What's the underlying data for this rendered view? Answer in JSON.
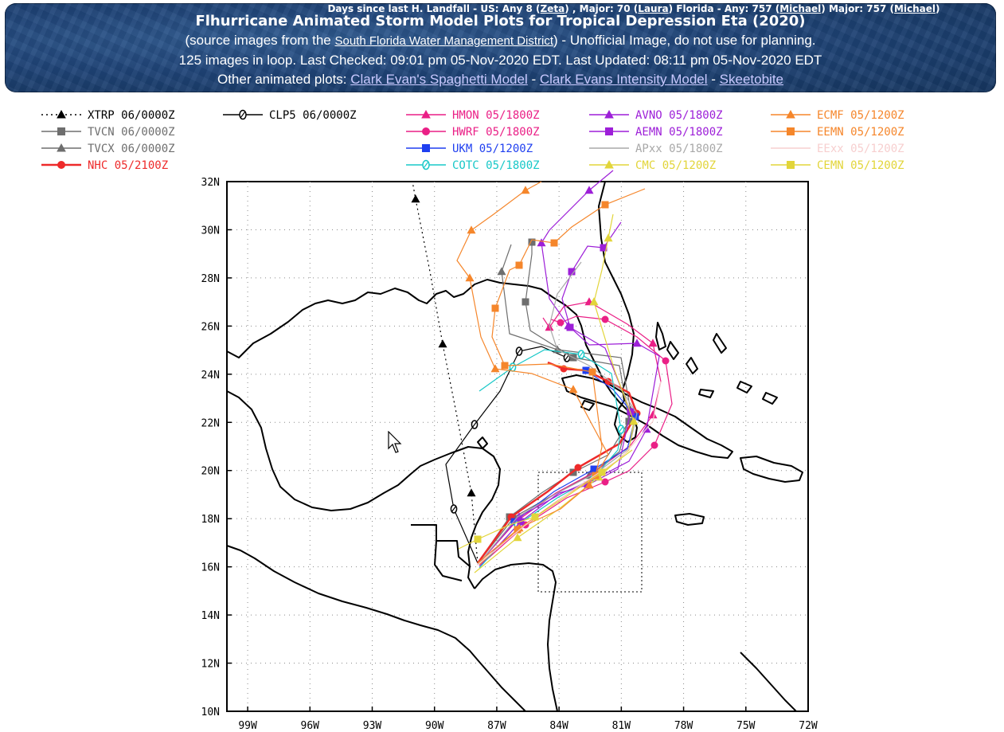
{
  "header": {
    "days_prefix": "Days since last H. Landfall - US: Any 8 (",
    "days_zeta": "Zeta",
    "days_mid1": ") , Major: 70 (",
    "days_laura": "Laura",
    "days_mid2": ") Florida - Any: 757 (",
    "days_michael1": "Michael",
    "days_mid3": ") Major: 757 (",
    "days_michael2": "Michael",
    "days_end": ")",
    "title": "Flhurricane Animated Storm Model Plots for Tropical Depression Eta (2020)",
    "source_prefix": "(source images from the ",
    "source_link": "South Florida Water Management District",
    "source_suffix": ") - Unofficial Image, do not use for planning.",
    "status_line": "125 images in loop. Last Checked: 09:01 pm 05-Nov-2020 EDT. Last Updated: 08:11 pm 05-Nov-2020 EDT",
    "other_prefix": "Other animated plots: ",
    "link_spaghetti": "Clark Evan's Spaghetti Model",
    "sep1": " - ",
    "link_intensity": "Clark Evans Intensity Model",
    "sep2": " - ",
    "link_skeeto": "Skeetobite"
  },
  "legend": [
    {
      "label": "XTRP 06/0000Z",
      "color": "#000000",
      "marker": "triangle",
      "dash": true
    },
    {
      "label": "CLP5 06/0000Z",
      "color": "#000000",
      "marker": "zero"
    },
    {
      "label": "TVCN 06/0000Z",
      "color": "#6e6e6e",
      "marker": "square"
    },
    {
      "label": "TVCX 06/0000Z",
      "color": "#6e6e6e",
      "marker": "triangle"
    },
    {
      "label": "NHC 05/2100Z",
      "color": "#ee2a2a",
      "marker": "circle"
    },
    {
      "label": "HMON 05/1800Z",
      "color": "#ea1f86",
      "marker": "triangle"
    },
    {
      "label": "HWRF 05/1800Z",
      "color": "#ea1f86",
      "marker": "circle"
    },
    {
      "label": "UKM 05/1200Z",
      "color": "#1f3ff0",
      "marker": "square"
    },
    {
      "label": "COTC 05/1800Z",
      "color": "#18c8c8",
      "marker": "zero"
    },
    {
      "label": "AVNO 05/1800Z",
      "color": "#9d1fd8",
      "marker": "triangle"
    },
    {
      "label": "AEMN 05/1800Z",
      "color": "#9d1fd8",
      "marker": "square"
    },
    {
      "label": "APxx 05/1800Z",
      "color": "#a8a8a8",
      "marker": "none"
    },
    {
      "label": "CMC 05/1200Z",
      "color": "#e2d53a",
      "marker": "triangle"
    },
    {
      "label": "ECMF 05/1200Z",
      "color": "#f5862b",
      "marker": "triangle"
    },
    {
      "label": "EEMN 05/1200Z",
      "color": "#f5862b",
      "marker": "square"
    },
    {
      "label": "EExx 05/1200Z",
      "color": "#f7cfcf",
      "marker": "none"
    },
    {
      "label": "CEMN 05/1200Z",
      "color": "#e2d53a",
      "marker": "square"
    }
  ],
  "map": {
    "lat_labels": [
      "32N",
      "30N",
      "28N",
      "26N",
      "24N",
      "22N",
      "20N",
      "18N",
      "16N",
      "14N",
      "12N",
      "10N"
    ],
    "lon_labels": [
      "99W",
      "96W",
      "93W",
      "90W",
      "87W",
      "84W",
      "81W",
      "78W",
      "75W",
      "72W"
    ]
  },
  "colors": {
    "banner_bg": "#1f4478",
    "link": "#c9c9ff"
  }
}
